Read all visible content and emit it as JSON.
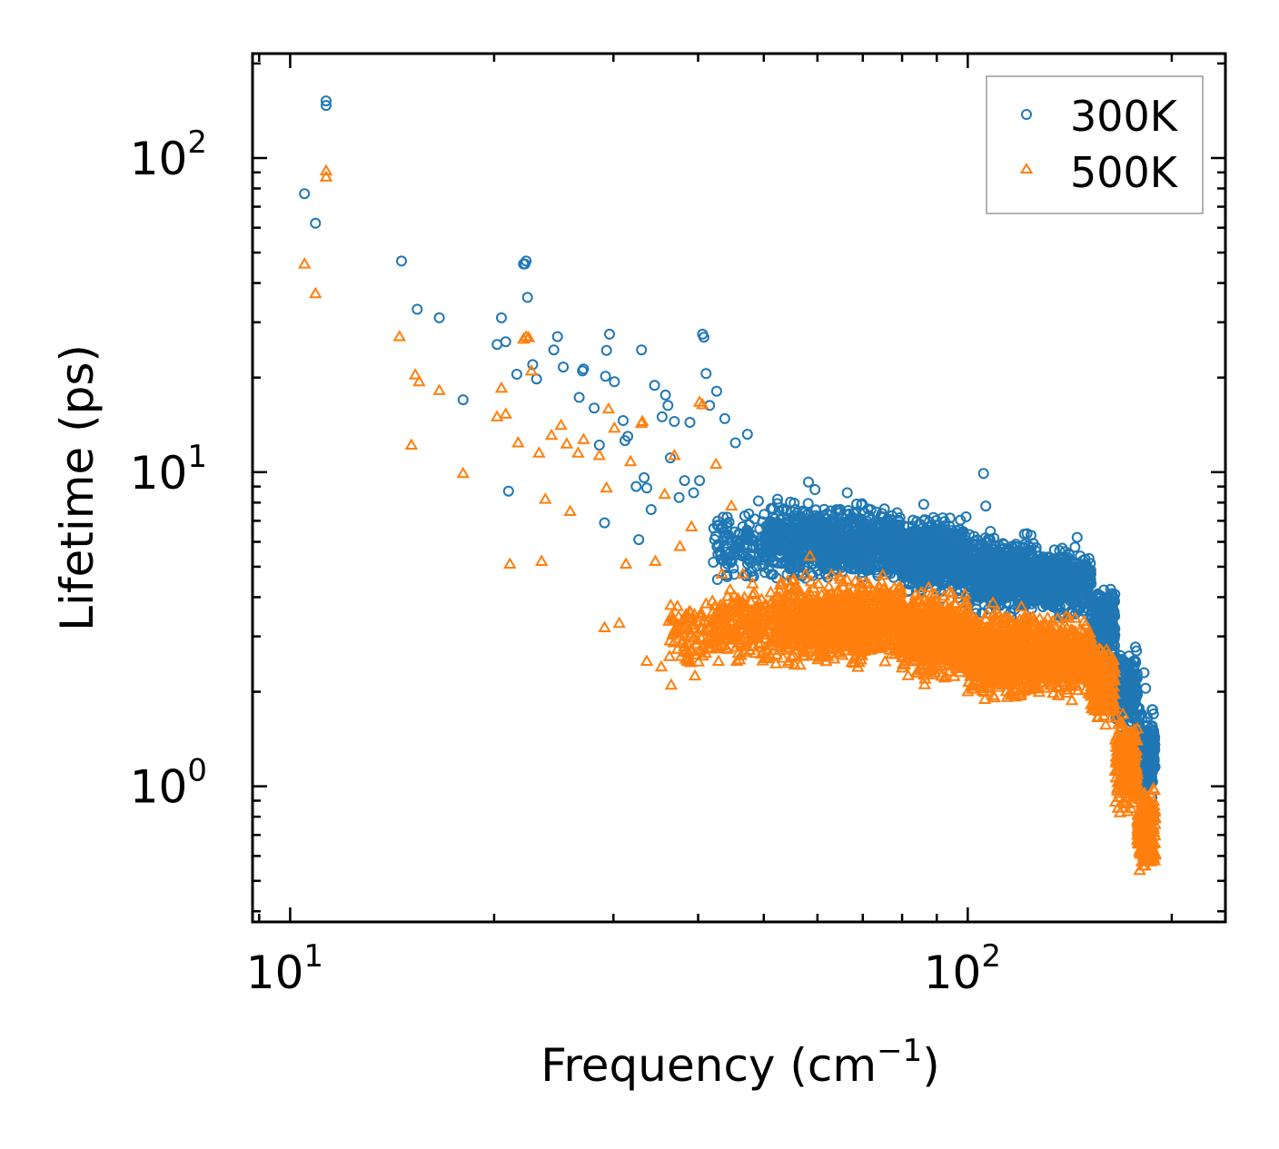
{
  "chart_data": {
    "type": "scatter",
    "xscale": "log",
    "yscale": "log",
    "xlabel": "Frequency (cm",
    "xlabel_sup": "−1",
    "xlabel_close": ")",
    "ylabel": "Lifetime (ps)",
    "xlim": [
      8.8,
      240
    ],
    "ylim": [
      0.37,
      215
    ],
    "x_ticks": [
      {
        "value": 10,
        "base": "10",
        "exp": "1"
      },
      {
        "value": 100,
        "base": "10",
        "exp": "2"
      }
    ],
    "y_ticks": [
      {
        "value": 1,
        "base": "10",
        "exp": "0"
      },
      {
        "value": 10,
        "base": "10",
        "exp": "1"
      },
      {
        "value": 100,
        "base": "10",
        "exp": "2"
      }
    ],
    "legend_position": "top-right",
    "series": [
      {
        "name": "300K",
        "marker": "circle",
        "color": "#1f77b4",
        "points": [
          [
            10.5,
            77
          ],
          [
            10.9,
            62
          ],
          [
            11.3,
            152
          ],
          [
            11.3,
            147
          ],
          [
            14.6,
            47
          ],
          [
            15.4,
            33
          ],
          [
            16.6,
            31
          ],
          [
            18,
            17
          ],
          [
            20.2,
            25.5
          ],
          [
            20.5,
            31
          ],
          [
            20.8,
            26
          ],
          [
            21,
            8.7
          ],
          [
            21.6,
            20.5
          ],
          [
            22.1,
            46
          ],
          [
            22.2,
            46
          ],
          [
            22.3,
            47
          ],
          [
            22.4,
            36
          ],
          [
            22.8,
            22
          ],
          [
            23.1,
            19.8
          ],
          [
            24.5,
            24.5
          ],
          [
            24.8,
            27
          ],
          [
            25.3,
            21.6
          ],
          [
            26.7,
            17.3
          ],
          [
            27,
            21
          ],
          [
            27.1,
            21.3
          ],
          [
            28.1,
            16
          ],
          [
            28.6,
            12.2
          ],
          [
            29.1,
            6.9
          ],
          [
            29.2,
            20.2
          ],
          [
            29.3,
            24.4
          ],
          [
            29.6,
            27.5
          ],
          [
            30.1,
            19.4
          ],
          [
            31,
            14.6
          ],
          [
            31.2,
            12.6
          ],
          [
            31.5,
            13
          ],
          [
            32.4,
            9
          ],
          [
            32.7,
            6.1
          ],
          [
            33,
            24.5
          ],
          [
            33.3,
            9.6
          ],
          [
            33.6,
            8.9
          ],
          [
            34.1,
            7.6
          ],
          [
            34.5,
            18.9
          ],
          [
            35.4,
            15
          ],
          [
            35.8,
            17.6
          ],
          [
            36.1,
            16.3
          ],
          [
            36.4,
            11.1
          ],
          [
            36.9,
            14.5
          ],
          [
            37.5,
            8.3
          ],
          [
            38.2,
            9.4
          ],
          [
            38.9,
            14.4
          ],
          [
            39.4,
            8.6
          ],
          [
            40.2,
            9.4
          ],
          [
            40.6,
            27.5
          ],
          [
            40.8,
            26.9
          ],
          [
            41.1,
            20.6
          ],
          [
            41.6,
            16.3
          ],
          [
            42.6,
            18.1
          ],
          [
            43.8,
            14.8
          ],
          [
            45.4,
            12.4
          ],
          [
            47.3,
            13.2
          ],
          [
            49.1,
            8.1
          ],
          [
            52.4,
            8.2
          ],
          [
            58.2,
            9.3
          ],
          [
            59.5,
            8.8
          ],
          [
            66.4,
            8.6
          ],
          [
            86.1,
            7.9
          ],
          [
            105.5,
            9.9
          ],
          [
            106.3,
            7.8
          ],
          [
            145,
            6.2
          ],
          [
            163,
            3.1
          ],
          [
            170,
            2.5
          ],
          [
            176,
            2.2
          ],
          [
            182,
            2.3
          ],
          [
            183,
            2.05
          ],
          [
            186,
            1.05
          ],
          [
            187,
            0.92
          ],
          [
            188,
            0.8
          ],
          [
            188.5,
            0.78
          ]
        ],
        "bands": [
          {
            "x": [
              42,
              50
            ],
            "lo": 4.2,
            "hi": 8.0,
            "n": 120
          },
          {
            "x": [
              50,
              60
            ],
            "lo": 4.3,
            "hi": 8.6,
            "n": 340
          },
          {
            "x": [
              60,
              80
            ],
            "lo": 4.2,
            "hi": 8.3,
            "n": 650
          },
          {
            "x": [
              80,
              100
            ],
            "lo": 3.8,
            "hi": 7.7,
            "n": 650
          },
          {
            "x": [
              100,
              125
            ],
            "lo": 3.3,
            "hi": 6.8,
            "n": 650
          },
          {
            "x": [
              125,
              152
            ],
            "lo": 3.3,
            "hi": 6.0,
            "n": 550
          },
          {
            "x": [
              152,
              165
            ],
            "lo": 2.4,
            "hi": 4.6,
            "n": 220
          },
          {
            "x": [
              165,
              178
            ],
            "lo": 1.4,
            "hi": 2.9,
            "n": 220
          },
          {
            "x": [
              178,
              189
            ],
            "lo": 0.85,
            "hi": 1.9,
            "n": 200
          }
        ]
      },
      {
        "name": "500K",
        "marker": "triangle",
        "color": "#ff7f0e",
        "points": [
          [
            10.5,
            46
          ],
          [
            10.9,
            37
          ],
          [
            11.3,
            91
          ],
          [
            11.3,
            87
          ],
          [
            14.5,
            27
          ],
          [
            15.1,
            12.2
          ],
          [
            15.3,
            20.4
          ],
          [
            15.5,
            19.4
          ],
          [
            16.6,
            18.2
          ],
          [
            18,
            9.9
          ],
          [
            20.2,
            15
          ],
          [
            20.5,
            18.5
          ],
          [
            20.8,
            15.3
          ],
          [
            21.1,
            5.1
          ],
          [
            21.7,
            12.4
          ],
          [
            22.1,
            26.5
          ],
          [
            22.3,
            27
          ],
          [
            22.5,
            26.8
          ],
          [
            22.7,
            21
          ],
          [
            23.3,
            11.5
          ],
          [
            23.5,
            5.2
          ],
          [
            23.8,
            8.2
          ],
          [
            24.3,
            13.1
          ],
          [
            25.1,
            14.1
          ],
          [
            25.6,
            12.3
          ],
          [
            25.9,
            7.5
          ],
          [
            26.6,
            11.5
          ],
          [
            27.1,
            12.7
          ],
          [
            28.6,
            11.3
          ],
          [
            29.1,
            3.2
          ],
          [
            29.3,
            8.9
          ],
          [
            29.5,
            15.9
          ],
          [
            30.1,
            13.8
          ],
          [
            30.6,
            3.3
          ],
          [
            31.3,
            5.1
          ],
          [
            31.8,
            10.8
          ],
          [
            33,
            14.3
          ],
          [
            33.1,
            14.5
          ],
          [
            33.6,
            2.5
          ],
          [
            34.6,
            5.2
          ],
          [
            35.3,
            2.4
          ],
          [
            35.7,
            8.5
          ],
          [
            36.5,
            2.1
          ],
          [
            36.9,
            11.3
          ],
          [
            37.6,
            5.8
          ],
          [
            39.1,
            6.7
          ],
          [
            40.2,
            16.7
          ],
          [
            40.6,
            16.4
          ],
          [
            42.5,
            10.6
          ],
          [
            44.8,
            7.8
          ],
          [
            58.5,
            5.4
          ]
        ],
        "bands": [
          {
            "x": [
              36,
              42
            ],
            "lo": 2.1,
            "hi": 4.6,
            "n": 90
          },
          {
            "x": [
              42,
              52
            ],
            "lo": 2.25,
            "hi": 4.8,
            "n": 230
          },
          {
            "x": [
              52,
              62
            ],
            "lo": 2.2,
            "hi": 5.1,
            "n": 330
          },
          {
            "x": [
              62,
              80
            ],
            "lo": 2.3,
            "hi": 4.9,
            "n": 650
          },
          {
            "x": [
              80,
              100
            ],
            "lo": 2.05,
            "hi": 4.5,
            "n": 650
          },
          {
            "x": [
              100,
              125
            ],
            "lo": 1.75,
            "hi": 4.0,
            "n": 650
          },
          {
            "x": [
              125,
              152
            ],
            "lo": 1.8,
            "hi": 3.7,
            "n": 550
          },
          {
            "x": [
              152,
              165
            ],
            "lo": 1.5,
            "hi": 3.0,
            "n": 220
          },
          {
            "x": [
              165,
              178
            ],
            "lo": 0.75,
            "hi": 1.8,
            "n": 220
          },
          {
            "x": [
              178,
              189
            ],
            "lo": 0.5,
            "hi": 1.05,
            "n": 200
          }
        ]
      }
    ]
  }
}
